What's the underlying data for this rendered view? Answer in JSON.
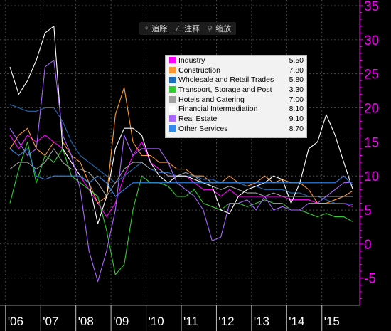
{
  "toolbar": {
    "items": [
      {
        "label": "追踪",
        "icon": "crosshair-icon",
        "glyph": "⌖"
      },
      {
        "label": "注释",
        "icon": "pencil-icon",
        "glyph": "∠"
      },
      {
        "label": "缩放",
        "icon": "magnifier-icon",
        "glyph": "⚲"
      }
    ]
  },
  "colors": {
    "background": "#000000",
    "axis_y": "#ff00ff",
    "grid": "#5a5a5a",
    "x_labels": "#ffffff"
  },
  "chart_data": {
    "type": "line",
    "title": "",
    "xlabel": "",
    "ylabel": "",
    "x": [
      "Q1 2006",
      "Q2 2006",
      "Q3 2006",
      "Q4 2006",
      "Q1 2007",
      "Q2 2007",
      "Q3 2007",
      "Q4 2007",
      "Q1 2008",
      "Q2 2008",
      "Q3 2008",
      "Q4 2008",
      "Q1 2009",
      "Q2 2009",
      "Q3 2009",
      "Q4 2009",
      "Q1 2010",
      "Q2 2010",
      "Q3 2010",
      "Q4 2010",
      "Q1 2011",
      "Q2 2011",
      "Q3 2011",
      "Q4 2011",
      "Q1 2012",
      "Q2 2012",
      "Q3 2012",
      "Q4 2012",
      "Q1 2013",
      "Q2 2013",
      "Q3 2013",
      "Q4 2013",
      "Q1 2014",
      "Q2 2014",
      "Q3 2014",
      "Q4 2014",
      "Q1 2015",
      "Q2 2015",
      "Q3 2015",
      "Q4 2015"
    ],
    "x_ticks": [
      "'06",
      "'07",
      "'08",
      "'09",
      "'10",
      "'11",
      "'12",
      "'13",
      "'14",
      "'15"
    ],
    "y_ticks": [
      -5,
      0,
      5,
      10,
      15,
      20,
      25,
      30,
      35
    ],
    "ylim": [
      -9,
      35
    ],
    "y_axis_side": "right",
    "grid": true,
    "legend_position": "top-center",
    "series": [
      {
        "name": "Industry",
        "value_label": "5.50",
        "color": "#ff00ff",
        "values": [
          16,
          14,
          16,
          15,
          16,
          15,
          14,
          12,
          10,
          8,
          6,
          4,
          6,
          10,
          13,
          15,
          12,
          11,
          10,
          10,
          10,
          9,
          8,
          8,
          7,
          8,
          7,
          7,
          7,
          7,
          7,
          7,
          6.5,
          6.5,
          6.5,
          6,
          6,
          6,
          6,
          5.5
        ]
      },
      {
        "name": "Construction",
        "value_label": "7.80",
        "color": "#ff9933",
        "values": [
          14,
          16,
          17,
          14,
          13,
          15,
          15,
          13,
          12,
          9,
          6,
          7,
          19,
          23,
          15,
          13,
          13,
          12,
          12,
          11,
          11,
          10,
          10,
          9,
          9,
          10,
          9,
          8.5,
          9,
          10,
          9,
          9.5,
          9,
          9,
          8,
          6,
          6,
          6.5,
          7,
          7.8
        ]
      },
      {
        "name": "Wholesale and Retail Trades",
        "value_label": "5.80",
        "color": "#1f6db5",
        "values": [
          20.5,
          20,
          19.5,
          19.5,
          20,
          20,
          18,
          15,
          13,
          12,
          11,
          10,
          9,
          10,
          11,
          12,
          11,
          10.5,
          10.5,
          10,
          10,
          10,
          9.5,
          9.5,
          9,
          9,
          9,
          8.5,
          8.5,
          8,
          8,
          8,
          7.5,
          7.5,
          7,
          7,
          6.5,
          6,
          6,
          5.8
        ]
      },
      {
        "name": "Transport, Storage and Post",
        "value_label": "3.30",
        "color": "#33cc33",
        "values": [
          6,
          11,
          15,
          9,
          13,
          12,
          14,
          10,
          9,
          8,
          7,
          2,
          -4.5,
          -3,
          5,
          10,
          9,
          9,
          8.5,
          7,
          7,
          8,
          6,
          5.5,
          5,
          6,
          6,
          5.5,
          6,
          6.5,
          6,
          6,
          5,
          5,
          4.5,
          4,
          4.5,
          4,
          4,
          3.3
        ]
      },
      {
        "name": "Hotels and Catering",
        "value_label": "7.00",
        "color": "#a0a0a0",
        "values": [
          11,
          12,
          12,
          11,
          12,
          14,
          12,
          11,
          11,
          10.5,
          9,
          7,
          9,
          11,
          12,
          12,
          11,
          11,
          10,
          10,
          10.5,
          10,
          9,
          8.5,
          8,
          8.5,
          8,
          7.5,
          7.5,
          7,
          7.5,
          7,
          7,
          7,
          7,
          7,
          7,
          7,
          7,
          7
        ]
      },
      {
        "name": "Financial Intermediation",
        "value_label": "8.10",
        "color": "#ffffff",
        "values": [
          26,
          22,
          24,
          27,
          31,
          32,
          14,
          12,
          10,
          9,
          3,
          7,
          14,
          17,
          17,
          16,
          12,
          10,
          9,
          10,
          10,
          9.5,
          9,
          8.5,
          5,
          4.5,
          7,
          8,
          8.5,
          9,
          10,
          9.5,
          6,
          9,
          14,
          15,
          19,
          16,
          12,
          8.1
        ]
      },
      {
        "name": "Real Estate",
        "value_label": "9.10",
        "color": "#aa66ff",
        "values": [
          17,
          15,
          13,
          14,
          26,
          27,
          16,
          13,
          8,
          -1,
          -5.5,
          -1,
          5,
          16,
          13,
          14,
          14,
          14,
          12,
          9,
          8,
          7,
          5,
          0.5,
          1,
          6,
          6,
          6.5,
          5,
          7,
          5,
          5.5,
          5,
          5,
          6,
          6,
          7,
          8,
          9,
          9.1
        ]
      },
      {
        "name": "Other Services",
        "value_label": "8.70",
        "color": "#3388ee",
        "values": [
          14,
          13,
          14,
          10,
          9.5,
          10,
          10,
          10,
          10,
          9,
          10,
          9,
          7,
          8,
          9,
          9,
          9,
          9,
          9,
          9,
          9,
          9,
          9,
          9,
          9,
          9,
          9,
          9,
          9,
          9,
          9,
          9,
          9,
          9,
          9,
          9,
          9,
          9,
          10,
          8.7
        ]
      }
    ]
  }
}
